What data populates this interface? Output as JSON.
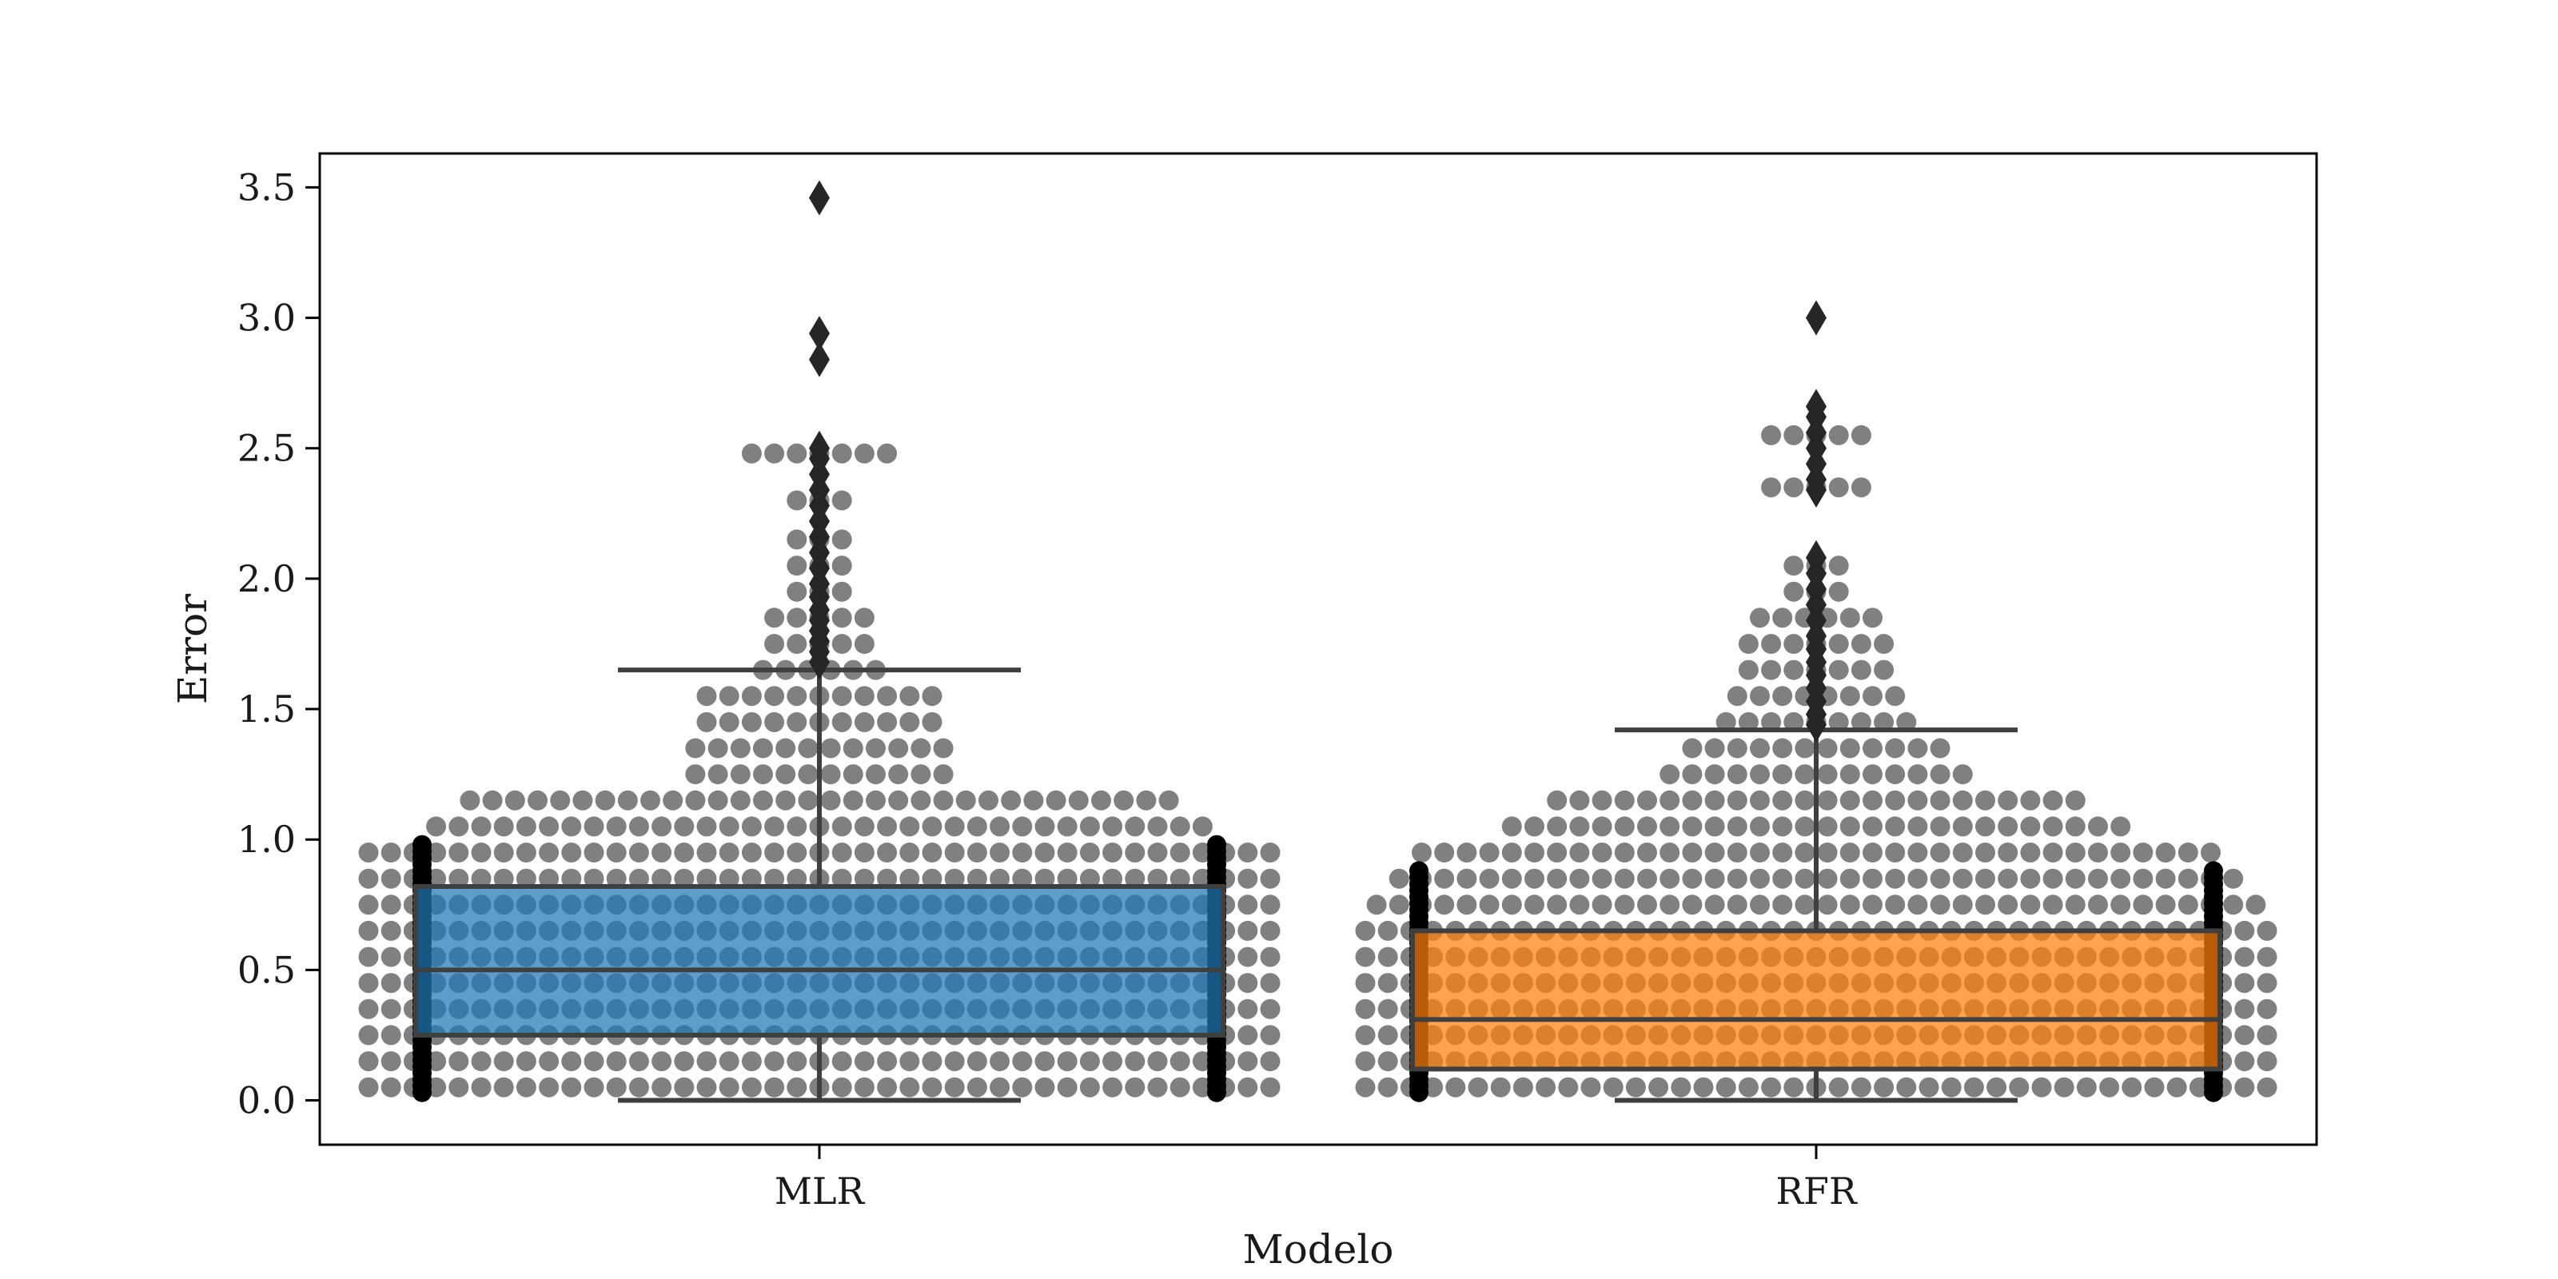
{
  "chart_data": {
    "type": "box",
    "overlay": "swarm",
    "title": "",
    "xlabel": "Modelo",
    "ylabel": "Error",
    "categories": [
      "MLR",
      "RFR"
    ],
    "ylim": [
      -0.17,
      3.63
    ],
    "yticks": [
      0.0,
      0.5,
      1.0,
      1.5,
      2.0,
      2.5,
      3.0,
      3.5
    ],
    "ytick_labels": [
      "0.0",
      "0.5",
      "1.0",
      "1.5",
      "2.0",
      "2.5",
      "3.0",
      "3.5"
    ],
    "grid": false,
    "legend": "none",
    "colors": {
      "MLR_box": "#1f77b4",
      "RFR_box": "#ff7f0e",
      "swarm_points": "#808080",
      "lines": "#3f3f3f",
      "outliers": "#262626"
    },
    "boxes": [
      {
        "name": "MLR",
        "whisker_low": 0.0,
        "q1": 0.25,
        "median": 0.5,
        "q3": 0.82,
        "whisker_high": 1.65,
        "outliers": [
          1.68,
          1.72,
          1.76,
          1.8,
          1.84,
          1.88,
          1.93,
          1.98,
          2.04,
          2.1,
          2.16,
          2.22,
          2.28,
          2.34,
          2.4,
          2.46,
          2.5,
          2.84,
          2.94,
          3.46
        ]
      },
      {
        "name": "RFR",
        "whisker_low": 0.0,
        "q1": 0.12,
        "median": 0.31,
        "q3": 0.65,
        "whisker_high": 1.42,
        "outliers": [
          1.44,
          1.48,
          1.53,
          1.58,
          1.63,
          1.68,
          1.73,
          1.78,
          1.84,
          1.9,
          1.96,
          2.02,
          2.08,
          2.34,
          2.38,
          2.44,
          2.5,
          2.56,
          2.62,
          2.66,
          3.0
        ]
      }
    ]
  }
}
